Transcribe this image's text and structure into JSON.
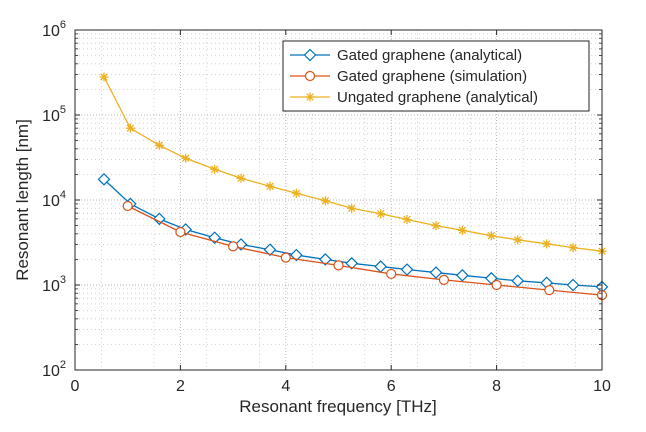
{
  "chart_data": {
    "type": "line",
    "title": "",
    "xlabel": "Resonant frequency [THz]",
    "ylabel": "Resonant length [nm]",
    "xlim": [
      0,
      10
    ],
    "ylim": [
      100,
      1000000
    ],
    "yscale": "log",
    "grid": true,
    "legend_position": "top-right",
    "x_ticks": [
      0,
      2,
      4,
      6,
      8,
      10
    ],
    "x_tick_labels": [
      "0",
      "2",
      "4",
      "6",
      "8",
      "10"
    ],
    "y_ticks": [
      100,
      1000,
      10000,
      100000,
      1000000
    ],
    "y_tick_labels": [
      {
        "base": "10",
        "exp": "2"
      },
      {
        "base": "10",
        "exp": "3"
      },
      {
        "base": "10",
        "exp": "4"
      },
      {
        "base": "10",
        "exp": "5"
      },
      {
        "base": "10",
        "exp": "6"
      }
    ],
    "series": [
      {
        "name": "Gated graphene (analytical)",
        "color": "#0072bd",
        "marker": "diamond",
        "x": [
          0.55,
          1.05,
          1.6,
          2.1,
          2.65,
          3.15,
          3.7,
          4.2,
          4.75,
          5.25,
          5.8,
          6.3,
          6.85,
          7.35,
          7.9,
          8.4,
          8.95,
          9.45,
          10.0
        ],
        "y": [
          17500,
          9000,
          6000,
          4500,
          3600,
          3000,
          2600,
          2250,
          2000,
          1800,
          1650,
          1520,
          1400,
          1300,
          1200,
          1120,
          1060,
          1000,
          950
        ]
      },
      {
        "name": "Gated graphene (simulation)",
        "color": "#d95319",
        "marker": "circle",
        "x": [
          1.0,
          2.0,
          3.0,
          4.0,
          5.0,
          6.0,
          7.0,
          8.0,
          9.0,
          10.0
        ],
        "y": [
          8500,
          4200,
          2850,
          2100,
          1700,
          1350,
          1150,
          1000,
          870,
          760
        ]
      },
      {
        "name": "Ungated graphene (analytical)",
        "color": "#edb120",
        "marker": "asterisk",
        "x": [
          0.55,
          1.05,
          1.6,
          2.1,
          2.65,
          3.15,
          3.7,
          4.2,
          4.75,
          5.25,
          5.8,
          6.3,
          6.85,
          7.35,
          7.9,
          8.4,
          8.95,
          9.45,
          10.0
        ],
        "y": [
          280000,
          70000,
          44000,
          31000,
          23000,
          18000,
          14500,
          12000,
          9800,
          8000,
          6900,
          5900,
          5000,
          4400,
          3800,
          3400,
          3050,
          2750,
          2500
        ]
      }
    ]
  }
}
